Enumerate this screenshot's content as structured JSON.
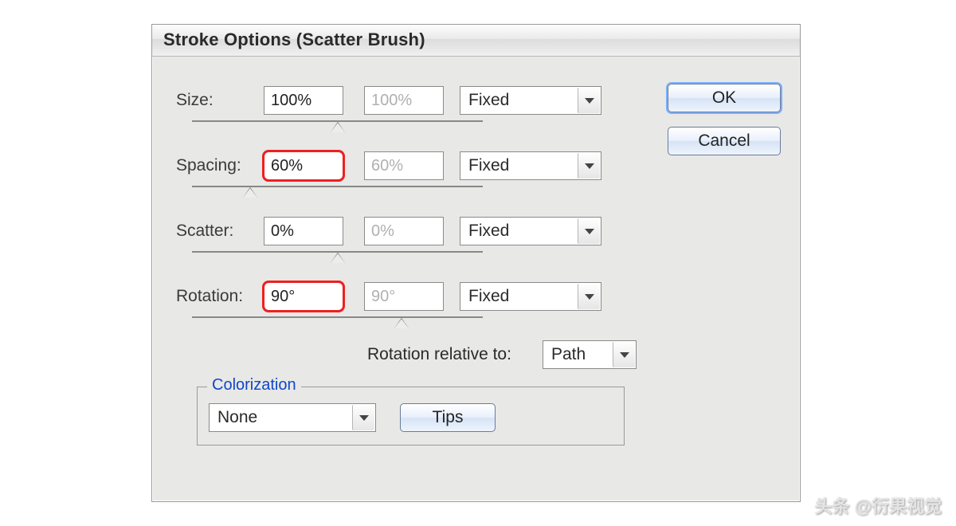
{
  "dialog": {
    "title": "Stroke Options (Scatter Brush)"
  },
  "buttons": {
    "ok": "OK",
    "cancel": "Cancel"
  },
  "rows": {
    "size": {
      "label": "Size:",
      "value": "100%",
      "value2": "100%",
      "mode": "Fixed",
      "thumb_pct": 50,
      "highlight": false
    },
    "spacing": {
      "label": "Spacing:",
      "value": "60%",
      "value2": "60%",
      "mode": "Fixed",
      "thumb_pct": 20,
      "highlight": true
    },
    "scatter": {
      "label": "Scatter:",
      "value": "0%",
      "value2": "0%",
      "mode": "Fixed",
      "thumb_pct": 50,
      "highlight": false
    },
    "rotation": {
      "label": "Rotation:",
      "value": "90°",
      "value2": "90°",
      "mode": "Fixed",
      "thumb_pct": 72,
      "highlight": true
    }
  },
  "rotation_relative": {
    "label": "Rotation relative to:",
    "value": "Path"
  },
  "colorization": {
    "legend": "Colorization",
    "value": "None",
    "tips": "Tips"
  },
  "watermark": "头条 @衍果视觉",
  "style": {
    "highlight_color": "#f02020",
    "text_color": "#2a2a2a",
    "disabled_text": "#b0b0b0",
    "dialog_bg": "#e8e8e6"
  }
}
